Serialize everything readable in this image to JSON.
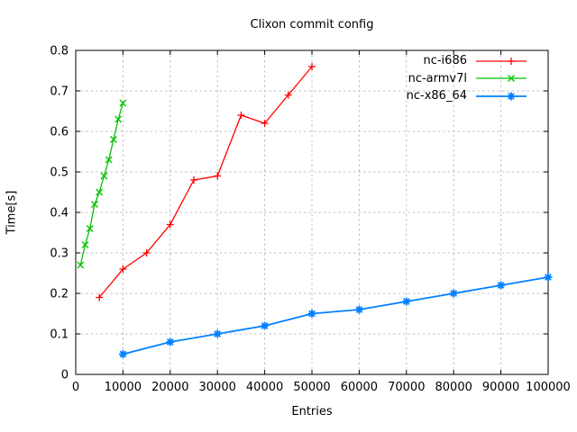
{
  "chart_data": {
    "type": "line",
    "title": "Clixon commit config",
    "xlabel": "Entries",
    "ylabel": "Time[s]",
    "xlim": [
      0,
      100000
    ],
    "ylim": [
      0,
      0.8
    ],
    "grid": true,
    "legend_position": "top-right-inside",
    "xticks": {
      "values": [
        0,
        10000,
        20000,
        30000,
        40000,
        50000,
        60000,
        70000,
        80000,
        90000,
        100000
      ],
      "labels": [
        "0",
        "10000",
        "20000",
        "30000",
        "40000",
        "50000",
        "60000",
        "70000",
        "80000",
        "90000",
        "100000"
      ]
    },
    "yticks": {
      "values": [
        0,
        0.1,
        0.2,
        0.3,
        0.4,
        0.5,
        0.6,
        0.7,
        0.8
      ],
      "labels": [
        "0",
        "0.1",
        "0.2",
        "0.3",
        "0.4",
        "0.5",
        "0.6",
        "0.7",
        "0.8"
      ]
    },
    "series": [
      {
        "name": "nc-i686",
        "color": "#ff0000",
        "marker": "plus",
        "line_width": 1.3,
        "x": [
          5000,
          10000,
          15000,
          20000,
          25000,
          30000,
          35000,
          40000,
          45000,
          50000
        ],
        "y": [
          0.19,
          0.26,
          0.3,
          0.37,
          0.48,
          0.49,
          0.64,
          0.62,
          0.69,
          0.76
        ]
      },
      {
        "name": "nc-armv7l",
        "color": "#00c000",
        "marker": "cross",
        "line_width": 1.3,
        "x": [
          1000,
          2000,
          3000,
          4000,
          5000,
          6000,
          7000,
          8000,
          9000,
          10000
        ],
        "y": [
          0.27,
          0.32,
          0.36,
          0.42,
          0.45,
          0.49,
          0.53,
          0.58,
          0.63,
          0.67
        ]
      },
      {
        "name": "nc-x86_64",
        "color": "#0080ff",
        "marker": "star",
        "line_width": 1.8,
        "x": [
          10000,
          20000,
          30000,
          40000,
          50000,
          60000,
          70000,
          80000,
          90000,
          100000
        ],
        "y": [
          0.05,
          0.08,
          0.1,
          0.12,
          0.15,
          0.16,
          0.18,
          0.2,
          0.22,
          0.24
        ]
      }
    ],
    "colors": {
      "background": "#ffffff",
      "border": "#000000",
      "grid": "#c0c0c0",
      "text": "#000000"
    }
  }
}
